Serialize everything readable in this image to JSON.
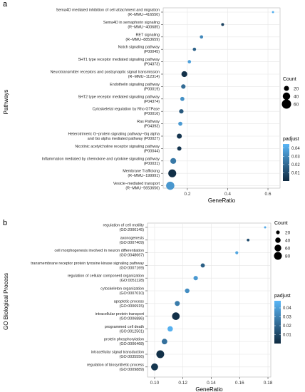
{
  "panels": [
    {
      "panel_label": "a",
      "chart_data": {
        "type": "scatter",
        "title": "",
        "xlabel": "GeneRatio",
        "ylabel": "Pathways",
        "xlim": [
          0.08,
          0.66
        ],
        "xticks": [
          0.2,
          0.4,
          0.6
        ],
        "xtick_labels": [
          "0.2",
          "0.4",
          "0.6"
        ],
        "grid": true,
        "categories": [
          [
            "Sema4D mediated inhibition of cell attachment and migration",
            "(R−MMU−416550)"
          ],
          [
            "Sema4D in semaphorin signaling",
            "(R−MMU−400685)"
          ],
          [
            "RET signaling",
            "(R−MMU−8853659)"
          ],
          [
            "Notch signaling pathway",
            "(P00045)"
          ],
          [
            "5HT1 type receptor mediated signaling pathway",
            "(P04373)"
          ],
          [
            "Neurotransmitter receptors and postsynaptic signal transmission",
            "(R−MMU−112314)"
          ],
          [
            "Endothelin signaling pathway",
            "(P00019)"
          ],
          [
            "5HT2 type receptor mediated signaling pathway",
            "(P04374)"
          ],
          [
            "Cytoskeletal regulation by Rho GTPase",
            "(P00016)"
          ],
          [
            "Ras Pathway",
            "(P04393)"
          ],
          [
            "Heterotrimeric G−protein signaling pathway−Gq alpha",
            "and Go alpha mediated pathway (P00027)"
          ],
          [
            "Nicotinic acetylcholine receptor signaling pathway",
            "(P00044)"
          ],
          [
            "Inflammation mediated by chemokine and cytokine signaling pathway",
            "(P00031)"
          ],
          [
            "Membrane Trafficking",
            "(R−MMU−199991)"
          ],
          [
            "Vesicle−mediated transport",
            "(R−MMU−5653656)"
          ]
        ],
        "points": [
          {
            "x": 0.625,
            "count": 5,
            "padjust": 0.043
          },
          {
            "x": 0.375,
            "count": 8,
            "padjust": 0.008
          },
          {
            "x": 0.27,
            "count": 10,
            "padjust": 0.03
          },
          {
            "x": 0.235,
            "count": 10,
            "padjust": 0.018
          },
          {
            "x": 0.21,
            "count": 10,
            "padjust": 0.038
          },
          {
            "x": 0.185,
            "count": 26,
            "padjust": 0.002
          },
          {
            "x": 0.18,
            "count": 16,
            "padjust": 0.021
          },
          {
            "x": 0.175,
            "count": 14,
            "padjust": 0.033
          },
          {
            "x": 0.17,
            "count": 16,
            "padjust": 0.015
          },
          {
            "x": 0.165,
            "count": 14,
            "padjust": 0.036
          },
          {
            "x": 0.16,
            "count": 20,
            "padjust": 0.004
          },
          {
            "x": 0.16,
            "count": 15,
            "padjust": 0.004
          },
          {
            "x": 0.13,
            "count": 26,
            "padjust": 0.025
          },
          {
            "x": 0.125,
            "count": 45,
            "padjust": 0.002
          },
          {
            "x": 0.115,
            "count": 48,
            "padjust": 0.035
          }
        ],
        "size_legend": {
          "title": "Count",
          "values": [
            20,
            40,
            60
          ],
          "labels": [
            "20",
            "40",
            "60"
          ],
          "range": [
            5,
            60
          ]
        },
        "color_legend": {
          "title": "padjust",
          "ticks": [
            0.01,
            0.02,
            0.03,
            0.04
          ],
          "labels": [
            "0.01",
            "0.02",
            "0.03",
            "0.04"
          ],
          "range": [
            0,
            0.045
          ],
          "low_color": "#0f2a40",
          "high_color": "#59b6f7"
        }
      }
    },
    {
      "panel_label": "b",
      "chart_data": {
        "type": "scatter",
        "title": "",
        "xlabel": "GeneRatio",
        "ylabel": "GO Biological Process",
        "xlim": [
          0.095,
          0.182
        ],
        "xticks": [
          0.1,
          0.12,
          0.14,
          0.16,
          0.18
        ],
        "xtick_labels": [
          "0.10",
          "0.12",
          "0.14",
          "0.16",
          "0.18"
        ],
        "grid": true,
        "categories": [
          [
            "regulation of cell motility",
            "(GO:2000145)"
          ],
          [
            "axonogenesis",
            "(GO:0007409)"
          ],
          [
            "cell morphogenesis involved in neuron differentiation",
            "(GO:0048667)"
          ],
          [
            "transmembrane receptor protein tyrosine kinase signaling pathway",
            "(GO:0007169)"
          ],
          [
            "regulation of cellular component organization",
            "(GO:0051128)"
          ],
          [
            "cytoskeleton organization",
            "(GO:0007010)"
          ],
          [
            "apoptotic process",
            "(GO:0006915)"
          ],
          [
            "intracellular protein transport",
            "(GO:0006886)"
          ],
          [
            "programmed cell death",
            "(GO:0012501)"
          ],
          [
            "protein phosphorylation",
            "(GO:0006468)"
          ],
          [
            "intracellular signal transduction",
            "(GO:0035556)"
          ],
          [
            "regulation of biosynthetic process",
            "(GO:0009889)"
          ]
        ],
        "points": [
          {
            "x": 0.178,
            "count": 8,
            "padjust": 0.044
          },
          {
            "x": 0.166,
            "count": 12,
            "padjust": 0.012
          },
          {
            "x": 0.158,
            "count": 14,
            "padjust": 0.042
          },
          {
            "x": 0.134,
            "count": 25,
            "padjust": 0.018
          },
          {
            "x": 0.129,
            "count": 28,
            "padjust": 0.038
          },
          {
            "x": 0.123,
            "count": 30,
            "padjust": 0.034
          },
          {
            "x": 0.116,
            "count": 35,
            "padjust": 0.028
          },
          {
            "x": 0.115,
            "count": 75,
            "padjust": 0.002
          },
          {
            "x": 0.111,
            "count": 40,
            "padjust": 0.046
          },
          {
            "x": 0.107,
            "count": 42,
            "padjust": 0.024
          },
          {
            "x": 0.104,
            "count": 80,
            "padjust": 0.002
          },
          {
            "x": 0.1,
            "count": 65,
            "padjust": 0.004
          }
        ],
        "size_legend": {
          "title": "Count",
          "values": [
            20,
            40,
            60,
            80
          ],
          "labels": [
            "20",
            "40",
            "60",
            "80"
          ],
          "range": [
            8,
            80
          ]
        },
        "color_legend": {
          "title": "padjust",
          "ticks": [
            0.01,
            0.02,
            0.03,
            0.04
          ],
          "labels": [
            "0.01",
            "0.02",
            "0.03",
            "0.04"
          ],
          "range": [
            0,
            0.048
          ],
          "low_color": "#0f2a40",
          "high_color": "#59b6f7"
        }
      }
    }
  ]
}
